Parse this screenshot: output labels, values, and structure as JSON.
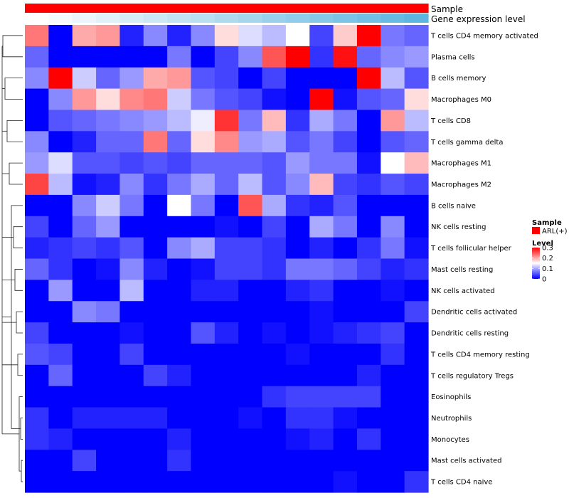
{
  "chart_data": {
    "type": "heatmap",
    "title": "",
    "columns": 17,
    "annotations": [
      {
        "name": "Sample",
        "colors": [
          "#ff0000",
          "#ff0000",
          "#ff0000",
          "#ff0000",
          "#ff0000",
          "#ff0000",
          "#ff0000",
          "#ff0000",
          "#ff0000",
          "#ff0000",
          "#ff0000",
          "#ff0000",
          "#ff0000",
          "#ff0000",
          "#ff0000",
          "#ff0000",
          "#ff0000"
        ]
      },
      {
        "name": "Gene expression level",
        "colors": [
          "#ffffff",
          "#f5fafd",
          "#ebf5fb",
          "#e0f1f9",
          "#d6ecf7",
          "#cce8f6",
          "#c2e3f4",
          "#b8dff2",
          "#aedaf0",
          "#a4d6ee",
          "#99d1ec",
          "#8fcdea",
          "#85c8e8",
          "#7bc4e6",
          "#71bfe4",
          "#67bbe2",
          "#5db6e0"
        ]
      }
    ],
    "rows": [
      {
        "label": "T cells CD4 memory activated",
        "values": [
          0.23,
          0,
          0.2,
          0.21,
          0.02,
          0.08,
          0.02,
          0.08,
          0.17,
          0.13,
          0.11,
          0.15,
          0.04,
          0.18,
          0.3,
          0.07,
          0.06
        ]
      },
      {
        "label": "Plasma cells",
        "values": [
          0.06,
          0,
          0,
          0,
          0,
          0,
          0.07,
          0,
          0.04,
          0.08,
          0.25,
          0.3,
          0.03,
          0.29,
          0.06,
          0.08,
          0.09
        ]
      },
      {
        "label": "B cells memory",
        "values": [
          0.08,
          0.3,
          0.12,
          0.06,
          0.09,
          0.2,
          0.21,
          0.05,
          0.04,
          0,
          0.04,
          0,
          0,
          0,
          0.3,
          0.11,
          0.05
        ]
      },
      {
        "label": "Macrophages M0",
        "values": [
          0,
          0.08,
          0.21,
          0.17,
          0.22,
          0.23,
          0.12,
          0.07,
          0.05,
          0.04,
          0.01,
          0,
          0.3,
          0.01,
          0.05,
          0.06,
          0.17
        ]
      },
      {
        "label": "T cells CD8",
        "values": [
          0,
          0.05,
          0.06,
          0.07,
          0.08,
          0.09,
          0.11,
          0.14,
          0.27,
          0.07,
          0.19,
          0.03,
          0.1,
          0.07,
          0,
          0.21,
          0.11
        ]
      },
      {
        "label": "T cells gamma delta",
        "values": [
          0.08,
          0,
          0.02,
          0.06,
          0.06,
          0.23,
          0.06,
          0.17,
          0.22,
          0.09,
          0.1,
          0.05,
          0.07,
          0.04,
          0,
          0.05,
          0.06
        ]
      },
      {
        "label": "Macrophages M1",
        "values": [
          0.09,
          0.13,
          0.05,
          0.05,
          0.04,
          0.05,
          0.04,
          0.06,
          0.06,
          0.06,
          0.05,
          0.09,
          0.07,
          0.07,
          0.01,
          0.15,
          0.19
        ]
      },
      {
        "label": "Macrophages M2",
        "values": [
          0.26,
          0.11,
          0.01,
          0.02,
          0.08,
          0.03,
          0.07,
          0.1,
          0.06,
          0.11,
          0.05,
          0.08,
          0.19,
          0.04,
          0.03,
          0.05,
          0.04
        ]
      },
      {
        "label": "B cells naive",
        "values": [
          0,
          0,
          0.08,
          0.12,
          0.07,
          0,
          0.15,
          0.07,
          0,
          0.25,
          0.1,
          0.03,
          0.02,
          0.05,
          0,
          0,
          0
        ]
      },
      {
        "label": "NK cells resting",
        "values": [
          0.04,
          0,
          0.06,
          0.09,
          0,
          0,
          0,
          0,
          0.01,
          0,
          0.04,
          0,
          0.1,
          0.07,
          0,
          0.08,
          0
        ]
      },
      {
        "label": "T cells follicular helper",
        "values": [
          0.02,
          0.03,
          0.04,
          0.03,
          0.05,
          0,
          0.08,
          0.1,
          0.04,
          0.04,
          0.03,
          0,
          0.02,
          0,
          0.03,
          0.07,
          0.01
        ]
      },
      {
        "label": "Mast cells resting",
        "values": [
          0.06,
          0.03,
          0,
          0.01,
          0.08,
          0.02,
          0,
          0.01,
          0.04,
          0.04,
          0.03,
          0.07,
          0.07,
          0.06,
          0.04,
          0.02,
          0.03
        ]
      },
      {
        "label": "NK cells activated",
        "values": [
          0,
          0.09,
          0,
          0,
          0.11,
          0,
          0,
          0.02,
          0.02,
          0,
          0,
          0.02,
          0.03,
          0,
          0,
          0.01,
          0
        ]
      },
      {
        "label": "Dendritic cells activated",
        "values": [
          0,
          0,
          0.08,
          0.07,
          0,
          0,
          0,
          0,
          0,
          0,
          0,
          0,
          0.01,
          0,
          0,
          0,
          0.04
        ]
      },
      {
        "label": "Dendritic cells resting",
        "values": [
          0.04,
          0,
          0,
          0,
          0.01,
          0,
          0,
          0.05,
          0.02,
          0,
          0.01,
          0,
          0.01,
          0.02,
          0.03,
          0.04,
          0
        ]
      },
      {
        "label": "T cells CD4 memory resting",
        "values": [
          0.05,
          0.04,
          0,
          0,
          0.04,
          0,
          0,
          0,
          0,
          0,
          0,
          0.01,
          0,
          0,
          0,
          0.03,
          0
        ]
      },
      {
        "label": "T cells regulatory  Tregs",
        "values": [
          0,
          0.06,
          0,
          0,
          0,
          0.04,
          0.02,
          0,
          0,
          0,
          0,
          0,
          0,
          0,
          0.02,
          0,
          0
        ]
      },
      {
        "label": "Eosinophils",
        "values": [
          0,
          0,
          0,
          0,
          0,
          0,
          0,
          0,
          0,
          0,
          0.03,
          0.04,
          0.04,
          0.04,
          0.04,
          0,
          0
        ]
      },
      {
        "label": "Neutrophils",
        "values": [
          0.03,
          0,
          0.02,
          0.02,
          0.02,
          0.02,
          0,
          0,
          0,
          0.01,
          0,
          0.03,
          0.03,
          0.01,
          0,
          0,
          0
        ]
      },
      {
        "label": "Monocytes",
        "values": [
          0.03,
          0.02,
          0,
          0,
          0,
          0,
          0.02,
          0,
          0,
          0,
          0,
          0.01,
          0.02,
          0,
          0.03,
          0,
          0
        ]
      },
      {
        "label": "Mast cells activated",
        "values": [
          0,
          0,
          0.04,
          0,
          0,
          0,
          0.03,
          0,
          0,
          0,
          0,
          0,
          0,
          0,
          0,
          0,
          0
        ]
      },
      {
        "label": "T cells CD4 naive",
        "values": [
          0,
          0,
          0,
          0,
          0,
          0,
          0,
          0,
          0,
          0,
          0,
          0,
          0,
          0.01,
          0,
          0,
          0.03
        ]
      }
    ],
    "color_scale": {
      "min": 0,
      "max": 0.3,
      "low": "#0000ff",
      "mid": "#ffffff",
      "high": "#ff0000",
      "midpoint": 0.15
    },
    "legend": {
      "sample_title": "Sample",
      "sample_entry": "ARL(+)",
      "sample_color": "#ff0000",
      "level_title": "Level",
      "level_ticks": [
        {
          "value": 0.3,
          "label": "0.3"
        },
        {
          "value": 0.2,
          "label": "0.2"
        },
        {
          "value": 0.1,
          "label": "0.1"
        },
        {
          "value": 0,
          "label": "0"
        }
      ]
    },
    "dendrogram_merge_order": [
      [
        20,
        21
      ],
      [
        18,
        19
      ],
      [
        17,
        "a"
      ],
      [
        15,
        16
      ],
      [
        13,
        14
      ],
      [
        11,
        12
      ],
      [
        9,
        10
      ],
      [
        8,
        "b"
      ],
      [
        6,
        7
      ],
      [
        4,
        5
      ],
      [
        2,
        3
      ],
      [
        0,
        1
      ]
    ]
  }
}
